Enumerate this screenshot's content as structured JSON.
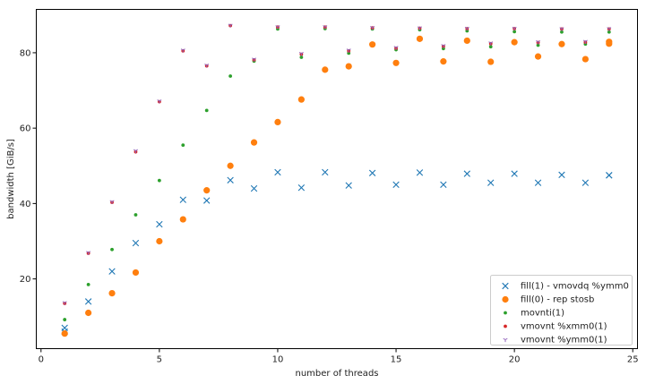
{
  "chart_data": {
    "type": "scatter",
    "xlabel": "number of threads",
    "ylabel": "bandwidth [GiB/s]",
    "xlim": [
      -0.2,
      25.2
    ],
    "ylim": [
      1.5,
      91.5
    ],
    "xticks": [
      0,
      5,
      10,
      15,
      20,
      25
    ],
    "yticks": [
      20,
      40,
      60,
      80
    ],
    "grid": false,
    "legend_position": "bottom-right",
    "series": [
      {
        "name": "fill(1) - vmovdq %ymm0",
        "color": "#1f77b4",
        "marker": "x",
        "x": [
          1,
          1,
          2,
          3,
          4,
          5,
          6,
          7,
          8,
          9,
          10,
          11,
          12,
          13,
          14,
          15,
          16,
          17,
          18,
          19,
          20,
          21,
          22,
          23,
          24,
          24
        ],
        "y": [
          7,
          6,
          14,
          22,
          29.5,
          34.5,
          41,
          40.8,
          46.2,
          44,
          48.3,
          44.2,
          48.3,
          44.8,
          48.1,
          45,
          48.2,
          45,
          47.9,
          45.5,
          47.9,
          45.5,
          47.6,
          45.5,
          47.5,
          47.5
        ]
      },
      {
        "name": "fill(0) - rep stosb",
        "color": "#ff7f0e",
        "marker": "o",
        "x": [
          1,
          2,
          3,
          4,
          5,
          6,
          7,
          8,
          9,
          10,
          11,
          12,
          13,
          14,
          15,
          16,
          17,
          18,
          19,
          20,
          21,
          22,
          23,
          24,
          24
        ],
        "y": [
          5.5,
          11,
          16.2,
          21.7,
          30,
          35.8,
          43.5,
          50,
          56.2,
          61.6,
          67.6,
          75.5,
          76.4,
          82.2,
          77.3,
          83.7,
          77.7,
          83.2,
          77.6,
          82.8,
          79,
          82.3,
          78.3,
          82.9,
          82.4
        ]
      },
      {
        "name": "movnti(1)",
        "color": "#2ca02c",
        "marker": "dot",
        "x": [
          1,
          2,
          3,
          4,
          5,
          6,
          7,
          8,
          9,
          10,
          11,
          12,
          13,
          14,
          15,
          16,
          17,
          18,
          19,
          20,
          21,
          22,
          23,
          24
        ],
        "y": [
          9.2,
          18.5,
          27.8,
          37,
          46.1,
          55.5,
          64.7,
          73.8,
          77.8,
          86.3,
          78.8,
          86.4,
          79.9,
          86.3,
          80.8,
          86.1,
          81.1,
          85.8,
          81.6,
          85.6,
          82,
          85.5,
          82.3,
          85.5
        ]
      },
      {
        "name": "vmovnt %xmm0(1)",
        "color": "#d62728",
        "marker": "dot",
        "x": [
          1,
          2,
          3,
          4,
          5,
          6,
          7,
          8,
          9,
          10,
          11,
          12,
          13,
          14,
          15,
          16,
          17,
          18,
          19,
          20,
          21,
          22,
          23,
          24
        ],
        "y": [
          13.5,
          26.8,
          40.3,
          53.7,
          67,
          80.5,
          76.5,
          87.2,
          78.1,
          86.8,
          79.6,
          86.8,
          80.5,
          86.6,
          81.2,
          86.5,
          81.7,
          86.4,
          82.4,
          86.4,
          82.7,
          86.3,
          82.8,
          86.3
        ]
      },
      {
        "name": "vmovnt %ymm0(1)",
        "color": "#9467bd",
        "marker": "tri",
        "x": [
          1,
          2,
          3,
          4,
          5,
          6,
          7,
          8,
          9,
          10,
          11,
          12,
          13,
          14,
          15,
          16,
          17,
          18,
          19,
          20,
          21,
          22,
          23,
          24
        ],
        "y": [
          13.7,
          27,
          40.5,
          54,
          67.2,
          80.7,
          76.7,
          87.3,
          78.3,
          86.9,
          79.8,
          86.9,
          80.7,
          86.7,
          81.4,
          86.6,
          81.9,
          86.5,
          82.6,
          86.5,
          82.9,
          86.4,
          83,
          86.4
        ]
      }
    ]
  }
}
